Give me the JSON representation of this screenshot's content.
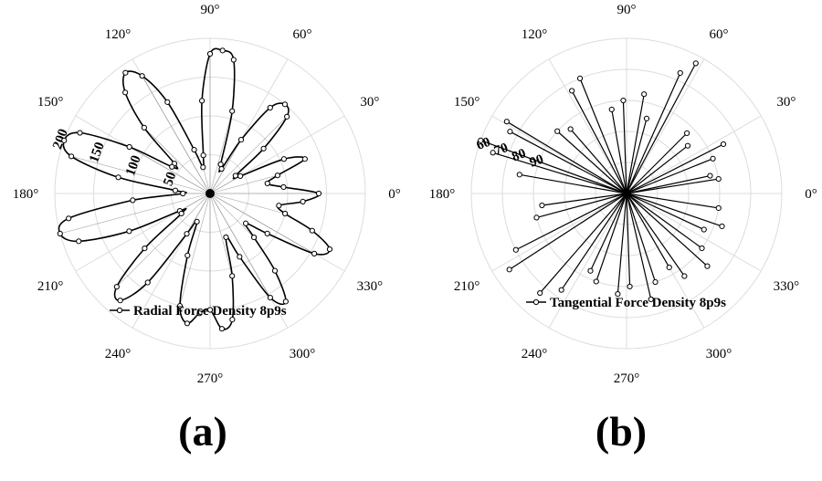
{
  "panels": [
    {
      "label": "(a)"
    },
    {
      "label": "(b)"
    }
  ],
  "chart_data": [
    {
      "type": "polar-line",
      "panel": "(a)",
      "legend": "Radial Force Density 8p9s",
      "legend_placement": "bottom-center",
      "angle_ticks": [
        "0°",
        "30°",
        "60°",
        "90°",
        "120°",
        "150°",
        "180°",
        "210°",
        "240°",
        "270°",
        "300°",
        "330°"
      ],
      "radial_ticks": [
        "50",
        "100",
        "150",
        "200"
      ],
      "rlim": [
        0,
        200
      ],
      "grid": true,
      "series": [
        {
          "name": "Radial Force Density 8p9s",
          "marker": "open-circle",
          "theta_deg": [
            0,
            5,
            10,
            15,
            20,
            25,
            30,
            35,
            40,
            45,
            50,
            55,
            60,
            65,
            70,
            75,
            80,
            85,
            90,
            95,
            100,
            105,
            110,
            115,
            120,
            125,
            130,
            135,
            140,
            145,
            150,
            155,
            160,
            165,
            170,
            175,
            180,
            185,
            190,
            195,
            200,
            205,
            210,
            215,
            220,
            225,
            230,
            235,
            240,
            245,
            250,
            255,
            260,
            265,
            270,
            275,
            280,
            285,
            290,
            295,
            300,
            305,
            310,
            315,
            320,
            325,
            330,
            335,
            340,
            345,
            350,
            355
          ],
          "r": [
            140,
            95,
            75,
            90,
            130,
            105,
            45,
            40,
            90,
            140,
            150,
            135,
            80,
            35,
            40,
            110,
            175,
            185,
            180,
            120,
            50,
            35,
            60,
            130,
            175,
            190,
            170,
            120,
            60,
            60,
            120,
            185,
            200,
            185,
            120,
            45,
            35,
            100,
            185,
            200,
            180,
            115,
            45,
            45,
            110,
            170,
            180,
            140,
            60,
            40,
            85,
            150,
            170,
            155,
            150,
            175,
            165,
            110,
            60,
            90,
            155,
            170,
            130,
            80,
            60,
            90,
            155,
            170,
            140,
            100,
            90,
            120
          ]
        }
      ]
    },
    {
      "type": "polar-line",
      "panel": "(b)",
      "legend": "Tangential Force Density 8p9s",
      "legend_placement": "bottom-center",
      "angle_ticks": [
        "0°",
        "30°",
        "60°",
        "90°",
        "120°",
        "150°",
        "180°",
        "210°",
        "240°",
        "270°",
        "300°",
        "330°"
      ],
      "radial_ticks": [
        "60",
        "70",
        "80",
        "90"
      ],
      "rlim": [
        0,
        100
      ],
      "grid": true,
      "series": [
        {
          "name": "Tangential Force Density 8p9s",
          "marker": "open-circle",
          "theta_deg": [
            9,
            12,
            22,
            27,
            38,
            45,
            62,
            66,
            75,
            80,
            92,
            100,
            112,
            118,
            131,
            138,
            149,
            152,
            160,
            163,
            170,
            188,
            195,
            207,
            213,
            229,
            236,
            245,
            251,
            265,
            272,
            283,
            288,
            300,
            305,
            318,
            324,
            335,
            341,
            351
          ],
          "r": [
            60,
            55,
            60,
            70,
            50,
            55,
            95,
            85,
            50,
            65,
            60,
            55,
            80,
            75,
            55,
            60,
            90,
            85,
            100,
            90,
            70,
            55,
            60,
            80,
            90,
            85,
            75,
            55,
            60,
            65,
            60,
            70,
            60,
            55,
            65,
            70,
            60,
            55,
            65,
            60
          ]
        }
      ]
    }
  ]
}
